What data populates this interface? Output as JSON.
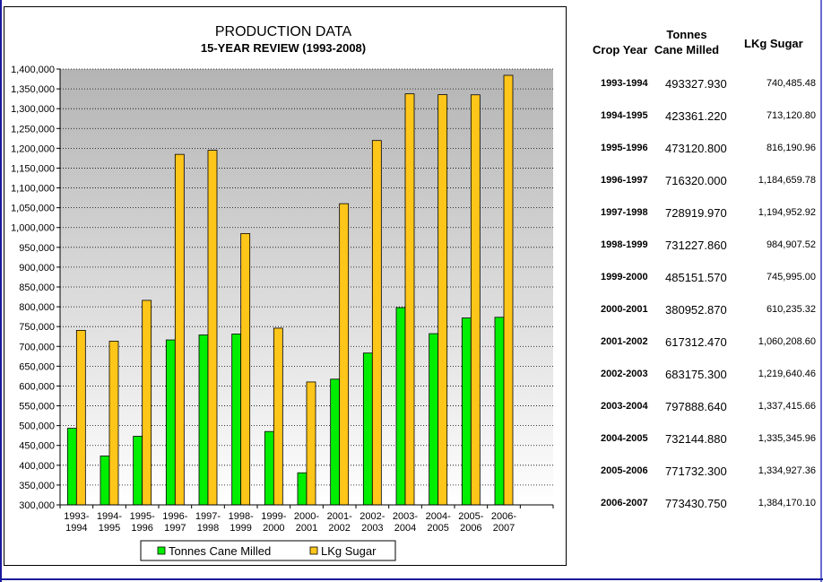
{
  "chart_data": {
    "type": "bar",
    "title": "PRODUCTION DATA",
    "subtitle": "15-YEAR REVIEW (1993-2008)",
    "categories": [
      "1993-1994",
      "1994-1995",
      "1995-1996",
      "1996-1997",
      "1997-1998",
      "1998-1999",
      "1999-2000",
      "2000-2001",
      "2001-2002",
      "2002-2003",
      "2003-2004",
      "2004-2005",
      "2005-2006",
      "2006-2007"
    ],
    "category_label_lines": [
      [
        "1993-",
        "1994"
      ],
      [
        "1994-",
        "1995"
      ],
      [
        "1995-",
        "1996"
      ],
      [
        "1996-",
        "1997"
      ],
      [
        "1997-",
        "1998"
      ],
      [
        "1998-",
        "1999"
      ],
      [
        "1999-",
        "2000"
      ],
      [
        "2000-",
        "2001"
      ],
      [
        "2001-",
        "2002"
      ],
      [
        "2002-",
        "2003"
      ],
      [
        "2003-",
        "2004"
      ],
      [
        "2004-",
        "2005"
      ],
      [
        "2005-",
        "2006"
      ],
      [
        "2006-",
        "2007"
      ]
    ],
    "series": [
      {
        "name": "Tonnes Cane Milled",
        "color": "#00ee00",
        "values": [
          493327.93,
          423361.22,
          473120.8,
          716320.0,
          728919.97,
          731227.86,
          485151.57,
          380952.87,
          617312.47,
          683175.3,
          797888.64,
          732144.88,
          771732.3,
          773430.75
        ]
      },
      {
        "name": "LKg Sugar",
        "color": "#ffc61a",
        "values": [
          740485.48,
          713120.8,
          816190.96,
          1184659.78,
          1194952.92,
          984907.52,
          745995.0,
          610235.32,
          1060208.6,
          1219640.46,
          1337415.66,
          1335345.96,
          1334927.36,
          1384170.1
        ]
      }
    ],
    "ylim": [
      300000,
      1400000
    ],
    "ytick_step": 50000,
    "ytick_labels": [
      "300,000",
      "350,000",
      "400,000",
      "450,000",
      "500,000",
      "550,000",
      "600,000",
      "650,000",
      "700,000",
      "750,000",
      "800,000",
      "850,000",
      "900,000",
      "950,000",
      "1,000,000",
      "1,050,000",
      "1,100,000",
      "1,150,000",
      "1,200,000",
      "1,250,000",
      "1,300,000",
      "1,350,000",
      "1,400,000"
    ],
    "slots": 15,
    "grid": true,
    "grid_style": "dotted",
    "legend_position": "bottom",
    "plot_background_gradient": [
      "#b4b4b4",
      "#ffffff"
    ]
  },
  "table": {
    "headers": {
      "crop_year": "Crop Year",
      "tonnes_line1": "Tonnes",
      "tonnes_line2": "Cane Milled",
      "lkg": "LKg Sugar"
    },
    "rows": [
      {
        "year": "1993-1994",
        "tonnes": "493327.930",
        "lkg": "740,485.48"
      },
      {
        "year": "1994-1995",
        "tonnes": "423361.220",
        "lkg": "713,120.80"
      },
      {
        "year": "1995-1996",
        "tonnes": "473120.800",
        "lkg": "816,190.96"
      },
      {
        "year": "1996-1997",
        "tonnes": "716320.000",
        "lkg": "1,184,659.78"
      },
      {
        "year": "1997-1998",
        "tonnes": "728919.970",
        "lkg": "1,194,952.92"
      },
      {
        "year": "1998-1999",
        "tonnes": "731227.860",
        "lkg": "984,907.52"
      },
      {
        "year": "1999-2000",
        "tonnes": "485151.570",
        "lkg": "745,995.00"
      },
      {
        "year": "2000-2001",
        "tonnes": "380952.870",
        "lkg": "610,235.32"
      },
      {
        "year": "2001-2002",
        "tonnes": "617312.470",
        "lkg": "1,060,208.60"
      },
      {
        "year": "2002-2003",
        "tonnes": "683175.300",
        "lkg": "1,219,640.46"
      },
      {
        "year": "2003-2004",
        "tonnes": "797888.640",
        "lkg": "1,337,415.66"
      },
      {
        "year": "2004-2005",
        "tonnes": "732144.880",
        "lkg": "1,335,345.96"
      },
      {
        "year": "2005-2006",
        "tonnes": "771732.300",
        "lkg": "1,334,927.36"
      },
      {
        "year": "2006-2007",
        "tonnes": "773430.750",
        "lkg": "1,384,170.10"
      }
    ]
  }
}
